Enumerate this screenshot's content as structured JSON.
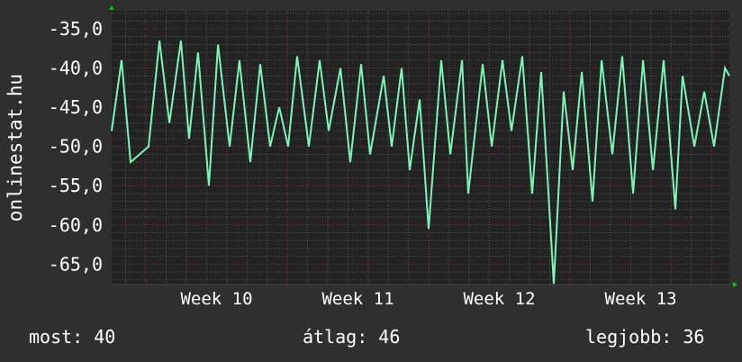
{
  "chart_data": {
    "type": "line",
    "title": "",
    "ylabel": "onlinestat.hu",
    "xlabel": "",
    "xlim": [
      9.758,
      14.127
    ],
    "ylim": [
      -67.6,
      -32.7
    ],
    "y_ticks": [
      -35,
      -40,
      -45,
      -50,
      -55,
      -60,
      -65
    ],
    "y_tick_labels": [
      "-35,0",
      "-40,0",
      "-45,0",
      "-50,0",
      "-55,0",
      "-60,0",
      "-65,0"
    ],
    "x_tick_labels": [
      {
        "label": "Week 10",
        "at": 10.5
      },
      {
        "label": "Week 11",
        "at": 11.5
      },
      {
        "label": "Week 12",
        "at": 12.5
      },
      {
        "label": "Week 13",
        "at": 13.5
      }
    ],
    "major_x": [
      10,
      11,
      12,
      13,
      14
    ],
    "grid": true,
    "colors": {
      "line": "#7df5b6",
      "background": "#2f2f2f",
      "plot": "#222222",
      "grid_minor": "#5a5a5a",
      "grid_major": "#8a3a3a",
      "arrow": "#00cc00"
    },
    "series": [
      {
        "x": [
          9.758,
          9.828,
          9.892,
          10.019,
          10.096,
          10.166,
          10.248,
          10.306,
          10.369,
          10.446,
          10.51,
          10.592,
          10.662,
          10.739,
          10.809,
          10.879,
          10.943,
          11.006,
          11.07,
          11.153,
          11.229,
          11.293,
          11.376,
          11.446,
          11.522,
          11.586,
          11.682,
          11.739,
          11.809,
          11.866,
          11.936,
          12.0,
          12.089,
          12.153,
          12.236,
          12.28,
          12.382,
          12.446,
          12.522,
          12.586,
          12.662,
          12.732,
          12.796,
          12.885,
          12.955,
          13.019,
          13.083,
          13.159,
          13.223,
          13.299,
          13.369,
          13.446,
          13.516,
          13.586,
          13.662,
          13.745,
          13.796,
          13.879,
          13.949,
          14.019,
          14.096,
          14.127
        ],
        "y": [
          -48,
          -39,
          -52,
          -50,
          -36.5,
          -47,
          -36.5,
          -49,
          -38,
          -55,
          -37,
          -50,
          -39,
          -52,
          -39.5,
          -50,
          -45,
          -50,
          -38.5,
          -50,
          -39,
          -48,
          -40,
          -52,
          -39.5,
          -51,
          -41,
          -50,
          -40,
          -53,
          -44,
          -60.5,
          -39,
          -51,
          -39,
          -56,
          -39.5,
          -50,
          -39,
          -48,
          -38.5,
          -56,
          -40.5,
          -67.5,
          -43,
          -53,
          -40.5,
          -57,
          -39,
          -51,
          -38.5,
          -56,
          -39,
          -53,
          -39,
          -58,
          -41,
          -50,
          -43,
          -50,
          -40,
          -41
        ]
      }
    ]
  },
  "legend": {
    "current": "most: 40",
    "average": "átlag: 46",
    "best": "legjobb: 36"
  }
}
